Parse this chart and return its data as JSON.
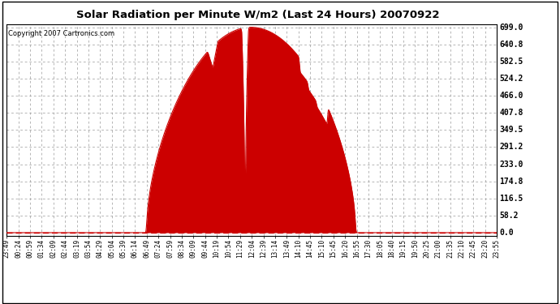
{
  "title": "Solar Radiation per Minute W/m2 (Last 24 Hours) 20070922",
  "copyright_text": "Copyright 2007 Cartronics.com",
  "bg_color": "#ffffff",
  "fill_color": "#cc0000",
  "grid_color": "#999999",
  "zero_line_color": "#cc0000",
  "yticks": [
    0.0,
    58.2,
    116.5,
    174.8,
    233.0,
    291.2,
    349.5,
    407.8,
    466.0,
    524.2,
    582.5,
    640.8,
    699.0
  ],
  "ymax": 699.0,
  "ymin": 0.0,
  "num_points": 1440,
  "xtick_labels": [
    "23:49",
    "00:24",
    "00:59",
    "01:34",
    "02:09",
    "02:44",
    "03:19",
    "03:54",
    "04:29",
    "05:04",
    "05:39",
    "06:14",
    "06:49",
    "07:24",
    "07:59",
    "08:34",
    "09:09",
    "09:44",
    "10:19",
    "10:54",
    "11:29",
    "12:04",
    "12:39",
    "13:14",
    "13:49",
    "14:10",
    "14:45",
    "15:10",
    "15:45",
    "16:20",
    "16:55",
    "17:30",
    "18:05",
    "18:40",
    "19:15",
    "19:50",
    "20:25",
    "21:00",
    "21:35",
    "22:10",
    "22:45",
    "23:20",
    "23:55"
  ]
}
